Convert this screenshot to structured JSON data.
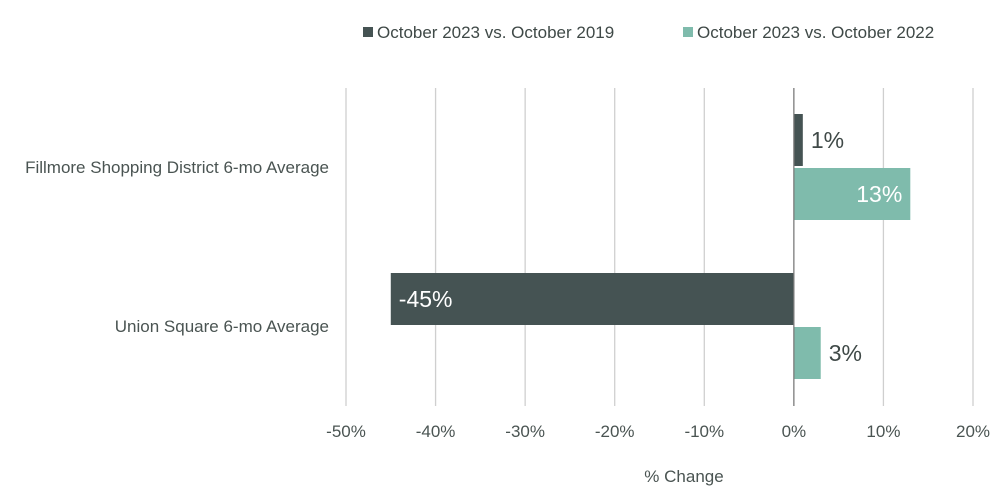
{
  "chart_data": {
    "type": "bar",
    "orientation": "horizontal",
    "categories": [
      "Fillmore Shopping District 6-mo Average",
      "Union Square 6-mo Average"
    ],
    "series": [
      {
        "name": "October 2023 vs. October 2019",
        "values": [
          1,
          -45
        ],
        "labels": [
          "1%",
          "-45%"
        ],
        "color": "#455353"
      },
      {
        "name": "October 2023 vs. October 2022",
        "values": [
          13,
          3
        ],
        "labels": [
          "13%",
          "3%"
        ],
        "color": "#7fbbac"
      }
    ],
    "xlim": [
      -50,
      20
    ],
    "xticks": [
      -50,
      -40,
      -30,
      -20,
      -10,
      0,
      10,
      20
    ],
    "xtick_labels": [
      "-50%",
      "-40%",
      "-30%",
      "-20%",
      "-10%",
      "0%",
      "10%",
      "20%"
    ],
    "xlabel": "% Change",
    "ylabel": "",
    "title": "",
    "grid": "vertical",
    "legend_position": "top-right"
  }
}
